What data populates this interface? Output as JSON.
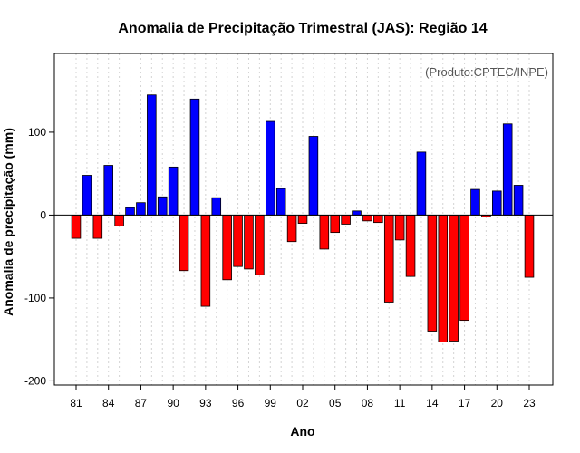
{
  "chart_data": {
    "type": "bar",
    "title": "Anomalia de Precipitação Trimestral (JAS): Região 14",
    "xlabel": "Ano",
    "ylabel": "Anomalia de precipitação (mm)",
    "credit": "(Produto:CPTEC/INPE)",
    "ylim": [
      -205,
      195
    ],
    "y_ticks": [
      -200,
      -100,
      0,
      100
    ],
    "x_ticks": [
      {
        "year": 1981,
        "label": "81"
      },
      {
        "year": 1984,
        "label": "84"
      },
      {
        "year": 1987,
        "label": "87"
      },
      {
        "year": 1990,
        "label": "90"
      },
      {
        "year": 1993,
        "label": "93"
      },
      {
        "year": 1996,
        "label": "96"
      },
      {
        "year": 1999,
        "label": "99"
      },
      {
        "year": 2002,
        "label": "02"
      },
      {
        "year": 2005,
        "label": "05"
      },
      {
        "year": 2008,
        "label": "08"
      },
      {
        "year": 2011,
        "label": "11"
      },
      {
        "year": 2014,
        "label": "14"
      },
      {
        "year": 2017,
        "label": "17"
      },
      {
        "year": 2020,
        "label": "20"
      },
      {
        "year": 2023,
        "label": "23"
      }
    ],
    "years": [
      1981,
      1982,
      1983,
      1984,
      1985,
      1986,
      1987,
      1988,
      1989,
      1990,
      1991,
      1992,
      1993,
      1994,
      1995,
      1996,
      1997,
      1998,
      1999,
      2000,
      2001,
      2002,
      2003,
      2004,
      2005,
      2006,
      2007,
      2008,
      2009,
      2010,
      2011,
      2012,
      2013,
      2014,
      2015,
      2016,
      2017,
      2018,
      2019,
      2020,
      2021,
      2022,
      2023
    ],
    "values": [
      -28,
      48,
      -28,
      60,
      -13,
      9,
      15,
      145,
      22,
      58,
      -67,
      140,
      -110,
      21,
      -78,
      -62,
      -65,
      -72,
      113,
      32,
      -32,
      -10,
      95,
      -41,
      -21,
      -11,
      5,
      -7,
      -9,
      -105,
      -30,
      -74,
      76,
      -140,
      -153,
      -152,
      -127,
      31,
      -2,
      29,
      110,
      36,
      -75
    ],
    "colors": {
      "positive": "#0000ff",
      "negative": "#ff0000",
      "grid": "#d3d3d3"
    }
  }
}
